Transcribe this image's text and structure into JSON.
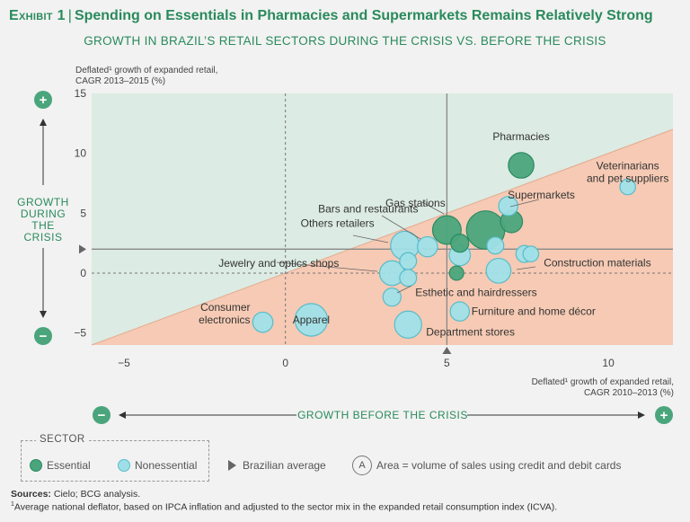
{
  "header": {
    "exhibit_label": "Exhibit 1",
    "title": "Spending on Essentials in Pharmacies and Supermarkets Remains Relatively Strong",
    "subtitle": "GROWTH IN BRAZIL’S RETAIL SECTORS DURING THE CRISIS VS. BEFORE THE CRISIS"
  },
  "chart_data": {
    "type": "scatter",
    "subtype": "bubble",
    "xlabel": "Deflated¹ growth of expanded retail, CAGR 2010–2013 (%)",
    "ylabel": "Deflated¹ growth of expanded retail, CAGR 2013–2015 (%)",
    "xlim": [
      -6,
      12
    ],
    "ylim": [
      -6,
      15
    ],
    "xticks": [
      "−5",
      "0",
      "5",
      "10"
    ],
    "yticks": [
      "15",
      "10",
      "5",
      "0",
      "−5"
    ],
    "brazilian_average": {
      "x": 5,
      "y": 2
    },
    "colors": {
      "essential_fill": "#4aa57c",
      "essential_stroke": "#2b8a63",
      "nonessential_fill": "#9fe0e8",
      "nonessential_stroke": "#58bccb",
      "upper_region": "#dcebe3",
      "lower_region": "#f6cab4"
    },
    "points": [
      {
        "label": "Pharmacies",
        "x": 7.3,
        "y": 9.0,
        "size": 16,
        "sector": "essential"
      },
      {
        "label": "Supermarkets",
        "x": 6.2,
        "y": 3.6,
        "size": 36,
        "sector": "essential"
      },
      {
        "label": "Gas stations",
        "x": 5.0,
        "y": 3.6,
        "size": 20,
        "sector": "essential"
      },
      {
        "label": "",
        "x": 7.0,
        "y": 4.3,
        "size": 12,
        "sector": "essential"
      },
      {
        "label": "",
        "x": 5.4,
        "y": 2.5,
        "size": 8,
        "sector": "essential"
      },
      {
        "label": "",
        "x": 5.3,
        "y": 0.0,
        "size": 5,
        "sector": "essential"
      },
      {
        "label": "Veterinarians and pet suppliers",
        "x": 10.6,
        "y": 7.2,
        "size": 6,
        "sector": "nonessential"
      },
      {
        "label": "",
        "x": 6.9,
        "y": 5.6,
        "size": 9,
        "sector": "nonessential"
      },
      {
        "label": "Bars and restaurants",
        "x": 4.4,
        "y": 2.2,
        "size": 10,
        "sector": "nonessential"
      },
      {
        "label": "Others retailers",
        "x": 3.7,
        "y": 2.3,
        "size": 20,
        "sector": "nonessential"
      },
      {
        "label": "",
        "x": 3.8,
        "y": 1.0,
        "size": 7,
        "sector": "nonessential"
      },
      {
        "label": "",
        "x": 5.4,
        "y": 1.5,
        "size": 11,
        "sector": "nonessential"
      },
      {
        "label": "",
        "x": 6.5,
        "y": 2.3,
        "size": 7,
        "sector": "nonessential"
      },
      {
        "label": "",
        "x": 7.4,
        "y": 1.6,
        "size": 7,
        "sector": "nonessential"
      },
      {
        "label": "",
        "x": 7.6,
        "y": 1.6,
        "size": 6,
        "sector": "nonessential"
      },
      {
        "label": "Construction materials",
        "x": 6.6,
        "y": 0.2,
        "size": 15,
        "sector": "nonessential"
      },
      {
        "label": "Jewelry and optics shops",
        "x": 3.3,
        "y": 0.0,
        "size": 15,
        "sector": "nonessential"
      },
      {
        "label": "",
        "x": 3.8,
        "y": -0.4,
        "size": 7,
        "sector": "nonessential"
      },
      {
        "label": "Esthetic and hairdressers",
        "x": 3.3,
        "y": -2.0,
        "size": 8,
        "sector": "nonessential"
      },
      {
        "label": "Furniture and home décor",
        "x": 5.4,
        "y": -3.2,
        "size": 9,
        "sector": "nonessential"
      },
      {
        "label": "Consumer electronics",
        "x": -0.7,
        "y": -4.1,
        "size": 10,
        "sector": "nonessential"
      },
      {
        "label": "Apparel",
        "x": 0.8,
        "y": -3.9,
        "size": 26,
        "sector": "nonessential"
      },
      {
        "label": "Department stores",
        "x": 3.8,
        "y": -4.3,
        "size": 18,
        "sector": "nonessential"
      }
    ]
  },
  "axis_side": {
    "y_label_lines": [
      "GROWTH",
      "DURING",
      "THE",
      "CRISIS"
    ],
    "x_label": "GROWTH BEFORE THE CRISIS",
    "x_minus": "−",
    "x_plus": "+",
    "y_plus": "+",
    "y_minus": "−"
  },
  "axis_titles": {
    "y_line1": "Deflated¹ growth of expanded retail,",
    "y_line2": "CAGR 2013–2015 (%)",
    "x_line1": "Deflated¹ growth of expanded retail,",
    "x_line2": "CAGR 2010–2013 (%)"
  },
  "legend": {
    "title": "SECTOR",
    "essential": "Essential",
    "nonessential": "Nonessential",
    "brazilian_average": "Brazilian average",
    "area_letter": "A",
    "area_note": "Area = volume of sales using credit and debit cards"
  },
  "footer": {
    "sources_label": "Sources:",
    "sources": "Cielo; BCG analysis.",
    "footnote_mark": "1",
    "footnote": "Average national deflator, based on IPCA inflation and adjusted to the sector mix in the expanded retail consumption index (ICVA)."
  }
}
